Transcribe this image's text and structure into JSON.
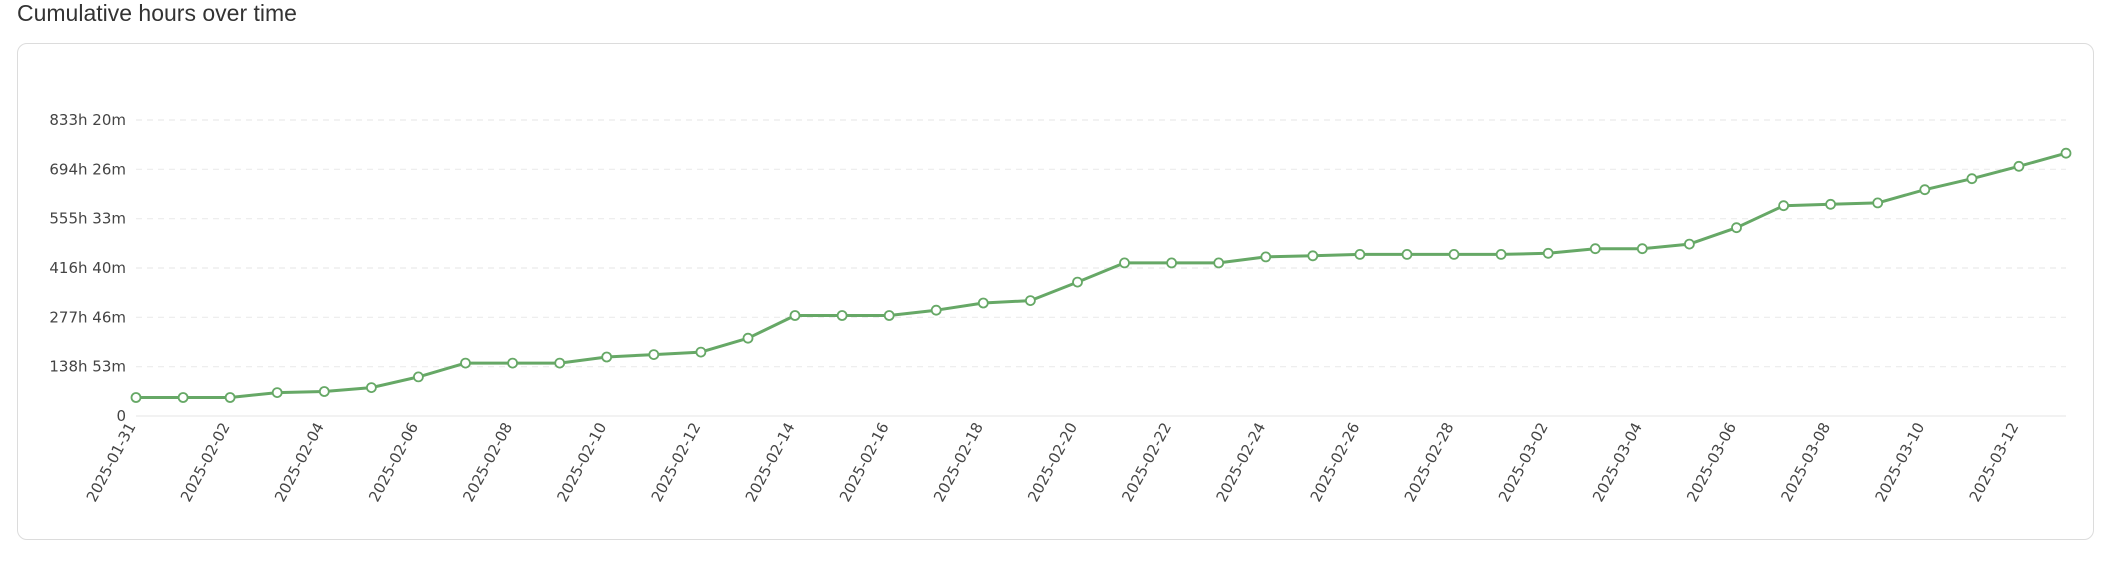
{
  "header": {
    "title": "Cumulative hours over time"
  },
  "colors": {
    "line": "#66a866",
    "grid": "#ebebeb",
    "marker_fill": "#ffffff",
    "axis_text": "#444444"
  },
  "chart_data": {
    "type": "line",
    "title": "Cumulative hours over time",
    "xlabel": "",
    "ylabel": "",
    "grid": "horizontal-dashed",
    "legend": "none",
    "y_unit": "hours",
    "ylim": [
      0,
      833.333
    ],
    "y_ticks": [
      0,
      138.889,
      277.778,
      416.667,
      555.556,
      694.444,
      833.333
    ],
    "y_tick_labels": [
      "0",
      "138h 53m",
      "277h 46m",
      "416h 40m",
      "555h 33m",
      "694h 26m",
      "833h 20m"
    ],
    "x_tick_labels": [
      "2025-01-31",
      "2025-02-02",
      "2025-02-04",
      "2025-02-06",
      "2025-02-08",
      "2025-02-10",
      "2025-02-12",
      "2025-02-14",
      "2025-02-16",
      "2025-02-18",
      "2025-02-20",
      "2025-02-22",
      "2025-02-24",
      "2025-02-26",
      "2025-02-28",
      "2025-03-02",
      "2025-03-04",
      "2025-03-06",
      "2025-03-08",
      "2025-03-10",
      "2025-03-12"
    ],
    "series": [
      {
        "x": [
          "2025-01-31",
          "2025-02-01",
          "2025-02-02",
          "2025-02-03",
          "2025-02-04",
          "2025-02-05",
          "2025-02-06",
          "2025-02-07",
          "2025-02-08",
          "2025-02-09",
          "2025-02-10",
          "2025-02-11",
          "2025-02-12",
          "2025-02-13",
          "2025-02-14",
          "2025-02-15",
          "2025-02-16",
          "2025-02-17",
          "2025-02-18",
          "2025-02-19",
          "2025-02-20",
          "2025-02-21",
          "2025-02-22",
          "2025-02-23",
          "2025-02-24",
          "2025-02-25",
          "2025-02-26",
          "2025-02-27",
          "2025-02-28",
          "2025-03-01",
          "2025-03-02",
          "2025-03-03",
          "2025-03-04",
          "2025-03-05",
          "2025-03-06",
          "2025-03-07",
          "2025-03-08",
          "2025-03-09",
          "2025-03-10",
          "2025-03-11",
          "2025-03-12",
          "2025-03-13"
        ],
        "y": [
          52,
          52,
          52,
          66,
          69,
          80,
          110,
          149,
          149,
          149,
          166,
          173,
          180,
          219,
          283,
          283,
          283,
          298,
          318,
          325,
          377,
          431,
          431,
          431,
          448,
          451,
          455,
          455,
          455,
          455,
          458,
          471,
          471,
          484,
          530,
          592,
          596,
          600,
          637,
          668,
          703,
          740
        ]
      }
    ]
  }
}
